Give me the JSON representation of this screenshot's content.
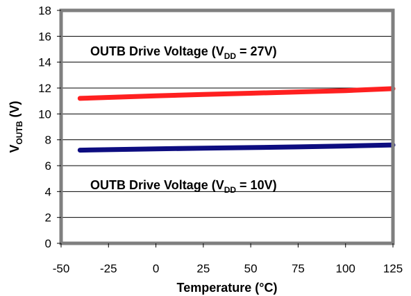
{
  "chart_data": {
    "type": "line",
    "title": "",
    "xlabel": "Temperature (°C)",
    "ylabel": {
      "main": "V",
      "sub": "OUTB",
      "rest": " (V)"
    },
    "xlim": [
      -50,
      125
    ],
    "ylim": [
      0,
      18
    ],
    "xticks": [
      "-50",
      "-25",
      "0",
      "25",
      "50",
      "75",
      "100",
      "125"
    ],
    "yticks": [
      "0",
      "2",
      "4",
      "6",
      "8",
      "10",
      "12",
      "14",
      "16",
      "18"
    ],
    "grid": "horizontal",
    "series": [
      {
        "color": "#ff2020",
        "x": [
          -40,
          0,
          25,
          50,
          75,
          100,
          125
        ],
        "y": [
          11.2,
          11.4,
          11.5,
          11.6,
          11.7,
          11.8,
          11.95
        ]
      },
      {
        "color": "#0d0d80",
        "x": [
          -40,
          0,
          25,
          50,
          75,
          100,
          125
        ],
        "y": [
          7.2,
          7.3,
          7.35,
          7.4,
          7.45,
          7.52,
          7.6
        ]
      }
    ],
    "annotations": [
      {
        "pre": "OUTB Drive  Voltage  (V",
        "sub": "DD",
        "post": " = 27V)"
      },
      {
        "pre": "OUTB Drive  Voltage  (V",
        "sub": "DD",
        "post": " = 10V)"
      }
    ]
  }
}
